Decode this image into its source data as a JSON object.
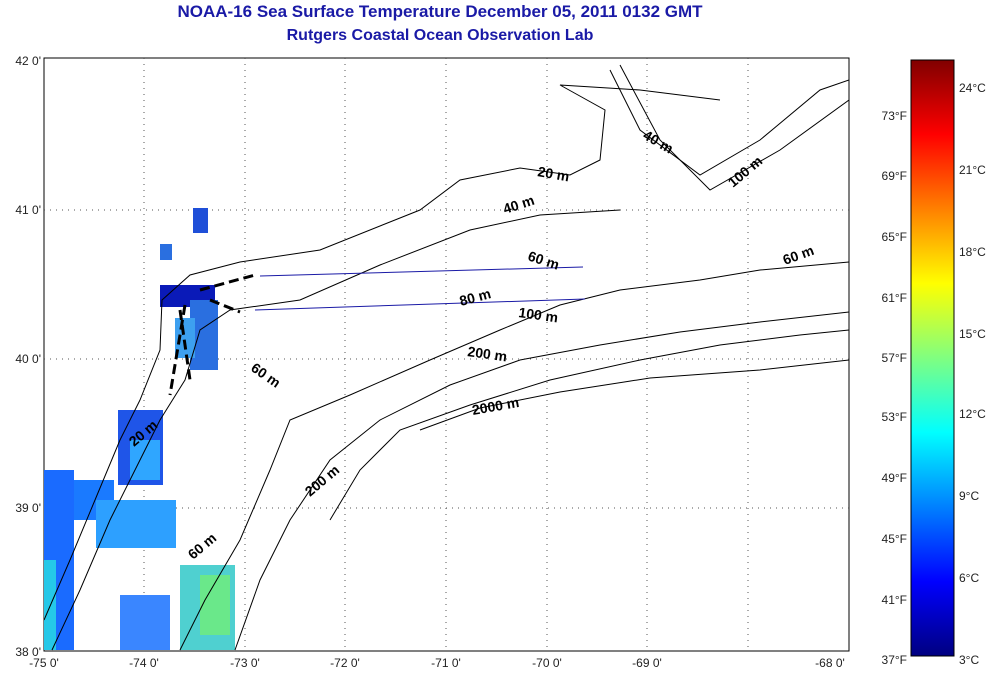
{
  "title": "NOAA-16 Sea Surface Temperature December 05, 2011 0132 GMT",
  "subtitle": "Rutgers Coastal Ocean Observation Lab",
  "lat_ticks": [
    "42 0'",
    "41 0'",
    "40 0'",
    "39 0'",
    "38 0'"
  ],
  "lon_ticks": [
    "-75 0'",
    "-74 0'",
    "-73 0'",
    "-72 0'",
    "-71 0'",
    "-70 0'",
    "-69 0'",
    "-68 0'"
  ],
  "colorbar": {
    "fahrenheit_labels": [
      "73°F",
      "69°F",
      "65°F",
      "61°F",
      "57°F",
      "53°F",
      "49°F",
      "45°F",
      "41°F",
      "37°F"
    ],
    "celsius_labels": [
      "24°C",
      "21°C",
      "18°C",
      "15°C",
      "12°C",
      "9°C",
      "6°C",
      "3°C"
    ],
    "colors": [
      "#000080",
      "#0000ff",
      "#0080ff",
      "#00ffff",
      "#80ff80",
      "#ffff00",
      "#ff8000",
      "#ff0000",
      "#800000"
    ]
  },
  "contour_labels": [
    "20 m",
    "40 m",
    "40 m",
    "60 m",
    "60 m",
    "80 m",
    "100 m",
    "100 m",
    "200 m",
    "2000 m",
    "200 m",
    "60 m",
    "20 m",
    "60 m"
  ]
}
